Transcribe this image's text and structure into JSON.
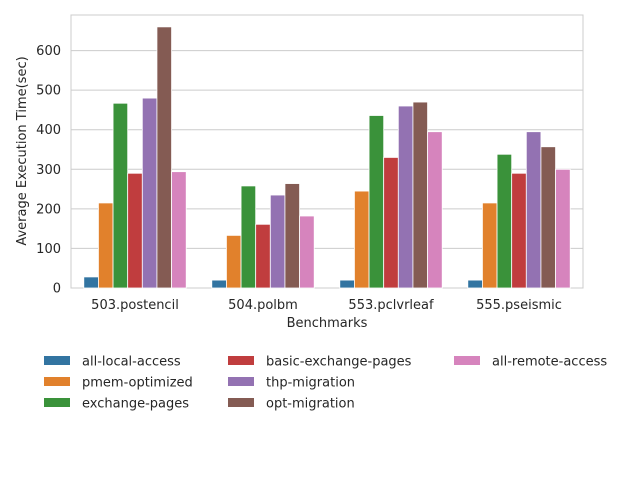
{
  "chart_data": {
    "type": "bar",
    "xlabel": "Benchmarks",
    "ylabel": "Average Execution Time(sec)",
    "categories": [
      "503.postencil",
      "504.polbm",
      "553.pclvrleaf",
      "555.pseismic"
    ],
    "ylim": [
      0,
      690
    ],
    "yticks": [
      0,
      100,
      200,
      300,
      400,
      500,
      600
    ],
    "grid": "horizontal",
    "legend_position": "bottom",
    "series": [
      {
        "name": "all-local-access",
        "color": "#3274a1",
        "values": [
          28,
          20,
          20,
          20
        ]
      },
      {
        "name": "pmem-optimized",
        "color": "#e1812c",
        "values": [
          215,
          133,
          245,
          215
        ]
      },
      {
        "name": "exchange-pages",
        "color": "#3a923a",
        "values": [
          467,
          258,
          436,
          338
        ]
      },
      {
        "name": "basic-exchange-pages",
        "color": "#c03d3e",
        "values": [
          290,
          161,
          330,
          290
        ]
      },
      {
        "name": "thp-migration",
        "color": "#9372b2",
        "values": [
          480,
          235,
          460,
          395
        ]
      },
      {
        "name": "opt-migration",
        "color": "#845b53",
        "values": [
          660,
          264,
          470,
          357
        ]
      },
      {
        "name": "all-remote-access",
        "color": "#d684bd",
        "values": [
          294,
          182,
          395,
          300
        ]
      }
    ]
  }
}
